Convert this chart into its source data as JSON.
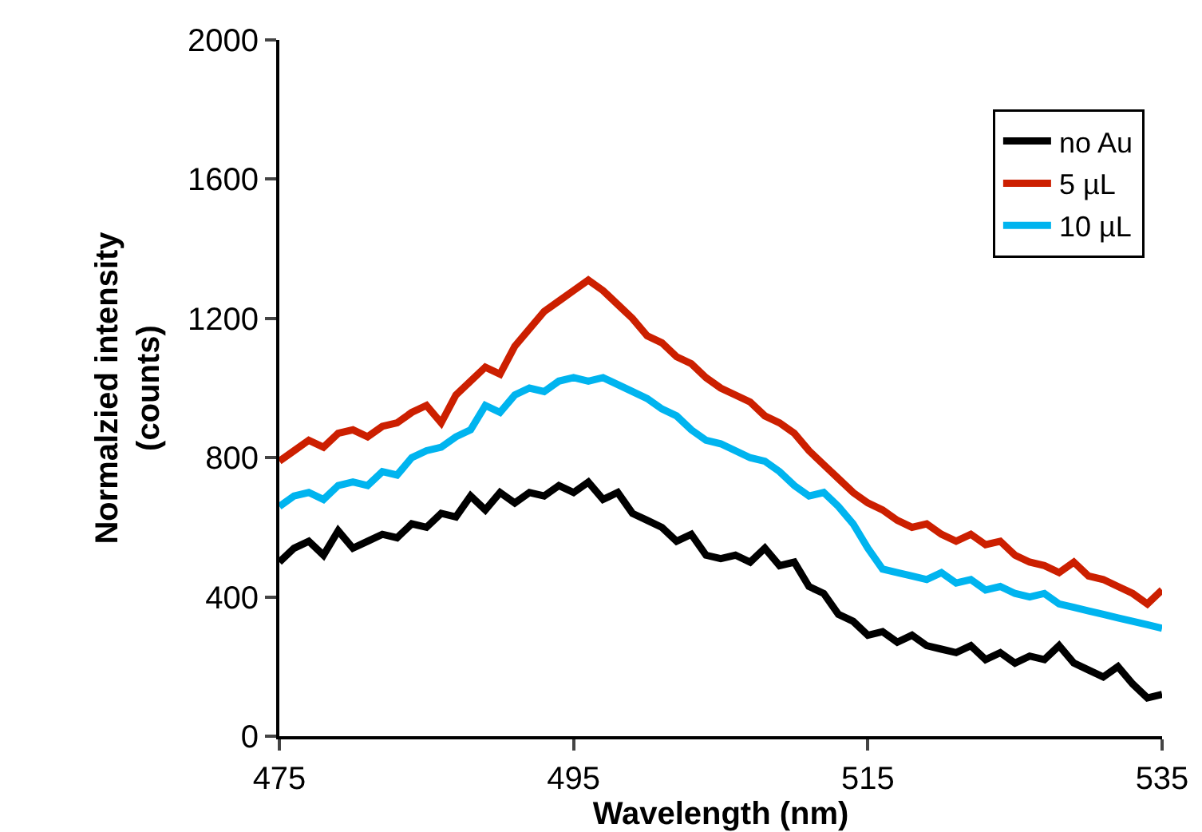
{
  "chart_data": {
    "type": "line",
    "xlabel": "Wavelength (nm)",
    "ylabel": "Normalzied intensity\n(counts)",
    "xlim": [
      475,
      535
    ],
    "xticks": [
      475,
      495,
      515,
      535
    ],
    "ylim": [
      0,
      2000
    ],
    "yticks": [
      0,
      400,
      800,
      1200,
      1600,
      2000
    ],
    "grid": false,
    "legend": "top right",
    "marker": "none",
    "line_style": "solid",
    "x": [
      475,
      476,
      477,
      478,
      479,
      480,
      481,
      482,
      483,
      484,
      485,
      486,
      487,
      488,
      489,
      490,
      491,
      492,
      493,
      494,
      495,
      496,
      497,
      498,
      499,
      500,
      501,
      502,
      503,
      504,
      505,
      506,
      507,
      508,
      509,
      510,
      511,
      512,
      513,
      514,
      515,
      516,
      517,
      518,
      519,
      520,
      521,
      522,
      523,
      524,
      525,
      526,
      527,
      528,
      529,
      530,
      531,
      532,
      533,
      534,
      535
    ],
    "series": [
      {
        "name": "no Au",
        "color": "#000000",
        "values": [
          500,
          540,
          560,
          520,
          590,
          540,
          560,
          580,
          570,
          610,
          600,
          640,
          630,
          690,
          650,
          700,
          670,
          700,
          690,
          720,
          700,
          730,
          680,
          700,
          640,
          620,
          600,
          560,
          580,
          520,
          510,
          520,
          500,
          540,
          490,
          500,
          430,
          410,
          350,
          330,
          290,
          300,
          270,
          290,
          260,
          250,
          240,
          260,
          220,
          240,
          210,
          230,
          220,
          260,
          210,
          190,
          170,
          200,
          150,
          110,
          120
        ]
      },
      {
        "name": "5 µL",
        "color": "#cc1f00",
        "values": [
          790,
          820,
          850,
          830,
          870,
          880,
          860,
          890,
          900,
          930,
          950,
          900,
          980,
          1020,
          1060,
          1040,
          1120,
          1170,
          1220,
          1250,
          1280,
          1310,
          1280,
          1240,
          1200,
          1150,
          1130,
          1090,
          1070,
          1030,
          1000,
          980,
          960,
          920,
          900,
          870,
          820,
          780,
          740,
          700,
          670,
          650,
          620,
          600,
          610,
          580,
          560,
          580,
          550,
          560,
          520,
          500,
          490,
          470,
          500,
          460,
          450,
          430,
          410,
          380,
          420
        ]
      },
      {
        "name": "10 µL",
        "color": "#00b4ef",
        "values": [
          660,
          690,
          700,
          680,
          720,
          730,
          720,
          760,
          750,
          800,
          820,
          830,
          860,
          880,
          950,
          930,
          980,
          1000,
          990,
          1020,
          1030,
          1020,
          1030,
          1010,
          990,
          970,
          940,
          920,
          880,
          850,
          840,
          820,
          800,
          790,
          760,
          720,
          690,
          700,
          660,
          610,
          540,
          480,
          470,
          460,
          450,
          470,
          440,
          450,
          420,
          430,
          410,
          400,
          410,
          380,
          370,
          360,
          350,
          340,
          330,
          320,
          310
        ]
      }
    ]
  }
}
